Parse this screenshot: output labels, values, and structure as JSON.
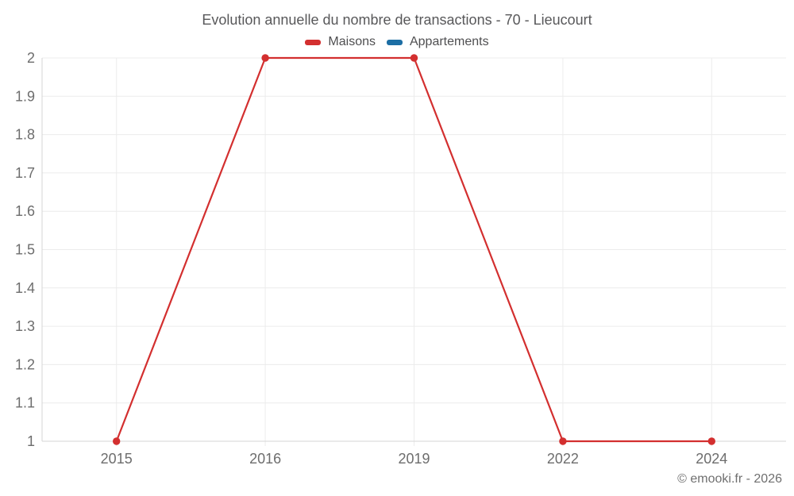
{
  "chart_data": {
    "type": "line",
    "title": "Evolution annuelle du nombre de transactions - 70 - Lieucourt",
    "categories": [
      "2015",
      "2016",
      "2019",
      "2022",
      "2024"
    ],
    "series": [
      {
        "name": "Maisons",
        "color": "#d32f2f",
        "values": [
          1,
          2,
          2,
          1,
          1
        ]
      },
      {
        "name": "Appartements",
        "color": "#1c6ea4",
        "values": []
      }
    ],
    "xlabel": "",
    "ylabel": "",
    "ylim": [
      1,
      2
    ],
    "ytick_step": 0.1,
    "ytick_labels": [
      "1",
      "1.1",
      "1.2",
      "1.3",
      "1.4",
      "1.5",
      "1.6",
      "1.7",
      "1.8",
      "1.9",
      "2"
    ],
    "grid": true,
    "legend_position": "top"
  },
  "footer": {
    "copyright": "© emooki.fr - 2026"
  },
  "colors": {
    "background": "#ffffff",
    "grid": "#ececec",
    "axis": "#d6d6d6",
    "title_text": "#58585a",
    "tick_text": "#6d6d6d",
    "legend_text": "#4f4f51",
    "copyright_text": "#6f6f6f"
  }
}
